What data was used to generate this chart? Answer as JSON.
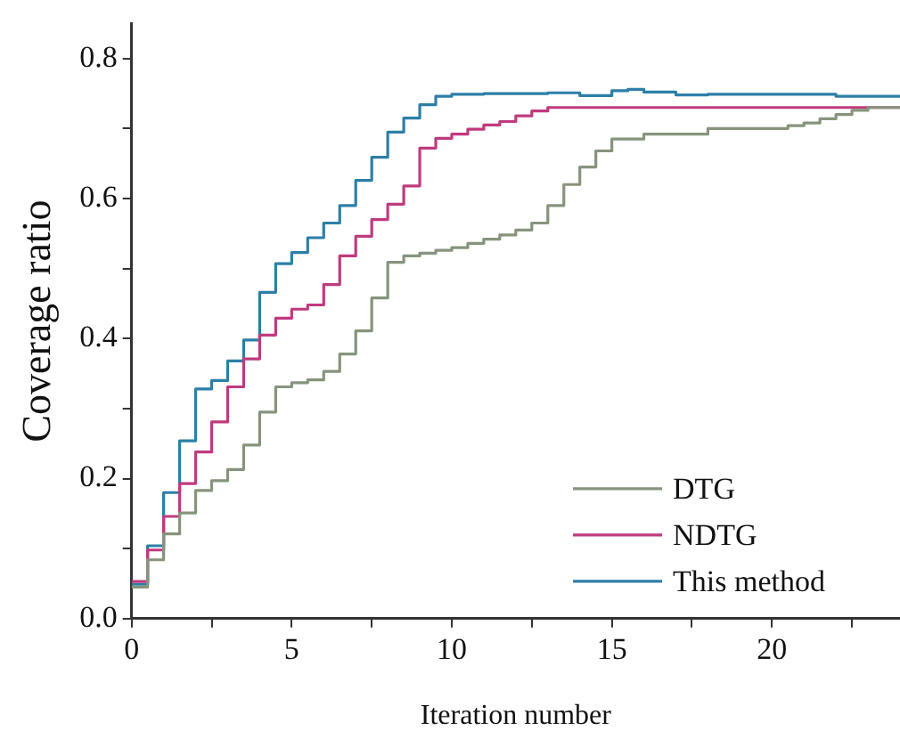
{
  "chart_data": {
    "type": "step",
    "xlabel": "Iteration number",
    "ylabel": "Coverage ratio",
    "xlim": [
      0,
      24
    ],
    "ylim": [
      0,
      0.85
    ],
    "xticks": [
      0,
      {
        "value": 2.5,
        "label": null
      },
      5,
      {
        "value": 7.5,
        "label": null
      },
      10,
      {
        "value": 12.5,
        "label": null
      },
      15,
      {
        "value": 17.5,
        "label": null
      },
      20,
      {
        "value": 22.5,
        "label": null
      }
    ],
    "yticks": [
      {
        "value": 0,
        "label": "0.0"
      },
      {
        "value": 0.1,
        "label": null
      },
      0.2,
      {
        "value": 0.3,
        "label": null
      },
      0.4,
      {
        "value": 0.5,
        "label": null
      },
      0.6,
      {
        "value": 0.7,
        "label": null
      },
      0.8
    ],
    "grid": false,
    "legend": "bottom right",
    "marker": "none",
    "line_style": "solid",
    "series": [
      {
        "name": "DTG",
        "color": "#86947c",
        "x": [
          0,
          0.5,
          1,
          1.5,
          2,
          2.5,
          3,
          3.5,
          4,
          4.5,
          5,
          5.5,
          6,
          6.5,
          7,
          7.5,
          8,
          8.5,
          9,
          9.5,
          10,
          10.5,
          11,
          11.5,
          12,
          12.5,
          13,
          13.5,
          14,
          14.5,
          15,
          16,
          18,
          20,
          20.5,
          21,
          21.5,
          22,
          22.5,
          23,
          24
        ],
        "values": [
          0.045,
          0.084,
          0.121,
          0.151,
          0.183,
          0.197,
          0.213,
          0.248,
          0.295,
          0.331,
          0.337,
          0.341,
          0.353,
          0.378,
          0.411,
          0.458,
          0.509,
          0.518,
          0.522,
          0.526,
          0.53,
          0.536,
          0.542,
          0.548,
          0.555,
          0.565,
          0.59,
          0.62,
          0.645,
          0.668,
          0.685,
          0.692,
          0.7,
          0.7,
          0.704,
          0.708,
          0.714,
          0.72,
          0.726,
          0.73,
          0.73
        ]
      },
      {
        "name": "NDTG",
        "color": "#c03a7e",
        "x": [
          0,
          0.5,
          1,
          1.5,
          2,
          2.5,
          3,
          3.5,
          4,
          4.5,
          5,
          5.5,
          6,
          6.5,
          7,
          7.5,
          8,
          8.5,
          9,
          9.5,
          10,
          10.5,
          11,
          11.5,
          12,
          12.5,
          13,
          16,
          20,
          24
        ],
        "values": [
          0.053,
          0.098,
          0.146,
          0.193,
          0.238,
          0.281,
          0.331,
          0.371,
          0.405,
          0.429,
          0.442,
          0.448,
          0.477,
          0.518,
          0.546,
          0.57,
          0.592,
          0.618,
          0.672,
          0.686,
          0.692,
          0.699,
          0.705,
          0.71,
          0.718,
          0.725,
          0.73,
          0.73,
          0.73,
          0.73
        ]
      },
      {
        "name": "This method",
        "color": "#2c7fa6",
        "x": [
          0,
          0.5,
          1,
          1.5,
          2,
          2.5,
          3,
          3.5,
          4,
          4.5,
          5,
          5.5,
          6,
          6.5,
          7,
          7.5,
          8,
          8.5,
          9,
          9.5,
          10,
          11,
          12,
          13,
          14,
          15,
          15.5,
          16,
          17,
          18,
          20,
          22,
          24
        ],
        "values": [
          0.049,
          0.104,
          0.18,
          0.254,
          0.328,
          0.34,
          0.368,
          0.398,
          0.466,
          0.507,
          0.523,
          0.544,
          0.565,
          0.59,
          0.626,
          0.659,
          0.695,
          0.715,
          0.734,
          0.746,
          0.749,
          0.75,
          0.75,
          0.751,
          0.747,
          0.754,
          0.756,
          0.752,
          0.748,
          0.749,
          0.749,
          0.746,
          0.746
        ]
      }
    ]
  }
}
